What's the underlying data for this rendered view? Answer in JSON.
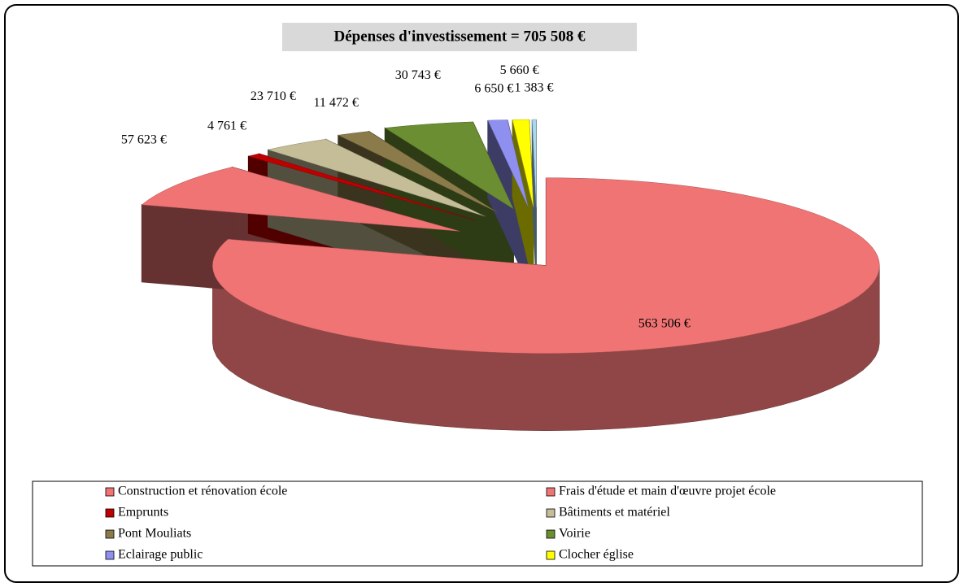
{
  "chart_data": {
    "type": "pie",
    "title": "Dépenses d'investissement = 705 508 €",
    "categories": [
      "Construction et rénovation école",
      "Frais d'étude et main d'œuvre projet école",
      "Emprunts",
      "Bâtiments et matériel",
      "Pont Mouliats",
      "Voirie",
      "Eclairage public",
      "Clocher église",
      null
    ],
    "values": [
      563506,
      57623,
      4761,
      23710,
      11472,
      30743,
      6650,
      5660,
      1383
    ],
    "value_labels": [
      "563 506 €",
      "57 623 €",
      "4 761 €",
      "23 710 €",
      "11 472 €",
      "30 743 €",
      "6 650 €",
      "5 660 €",
      "1 383 €"
    ],
    "colors": [
      "#f07474",
      "#f07474",
      "#c00000",
      "#c4bd97",
      "#8b7b4a",
      "#6b8e33",
      "#8f8ff0",
      "#ffff00",
      "#a8d8f0"
    ],
    "legend": "bottom"
  }
}
